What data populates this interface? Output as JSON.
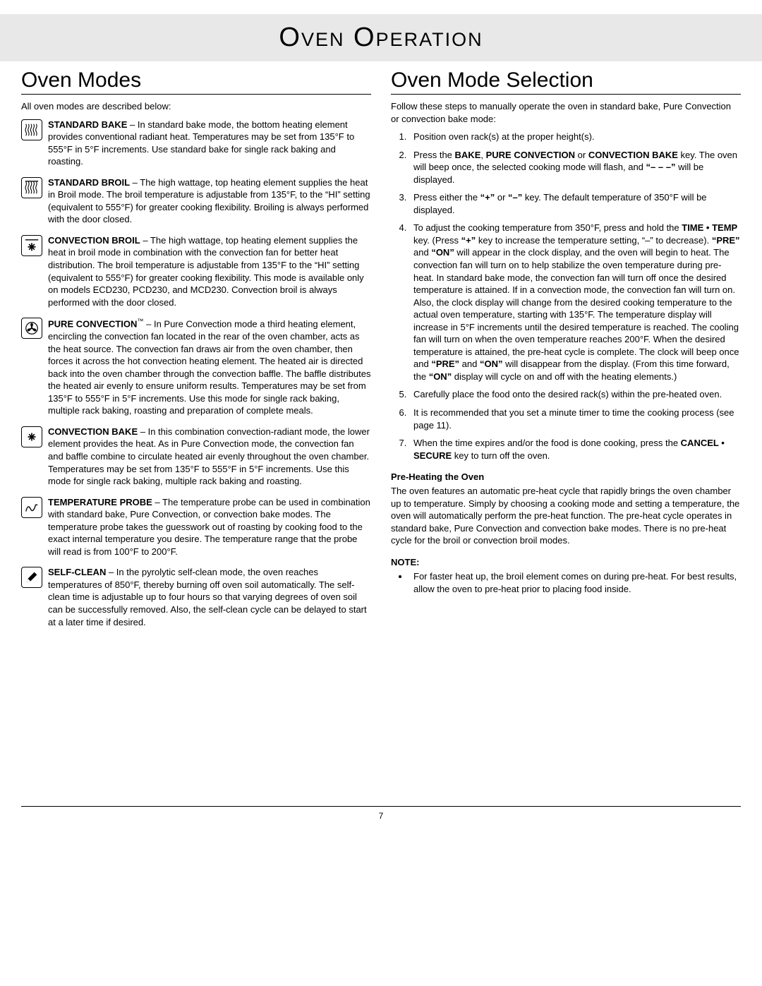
{
  "header": {
    "title": "Oven Operation"
  },
  "left": {
    "heading": "Oven Modes",
    "intro": "All oven modes are described below:",
    "modes": [
      {
        "icon": "waves-bottom",
        "title": "STANDARD BAKE",
        "body": " – In standard bake mode, the bottom heating element provides conventional radiant heat. Temperatures may be set from 135°F to 555°F in 5°F increments. Use standard bake for single rack baking and roasting."
      },
      {
        "icon": "waves-top",
        "title": "STANDARD BROIL",
        "body": " – The high wattage, top heating element supplies the heat in Broil mode. The broil temperature is adjustable from 135°F, to the “HI” setting (equivalent to 555°F) for greater cooking flexibility. Broiling is always performed with the door closed."
      },
      {
        "icon": "asterisk-bar",
        "title": "CONVECTION BROIL",
        "body": " – The high wattage, top heating element supplies the heat in broil mode in combination with the convection fan for better heat distribution. The broil temperature is adjustable from 135°F to the “HI” setting (equivalent to 555°F) for greater cooking flexibility. This mode is available only on models ECD230, PCD230, and MCD230. Convection broil is always performed with the door closed."
      },
      {
        "icon": "fan",
        "title": "PURE CONVECTION",
        "tm": "™",
        "body": " – In Pure Convection mode a third heating element, encircling the convection fan located in the rear of the oven chamber, acts as the heat source. The convection fan draws air from the oven chamber, then forces it across the hot convection heating element. The heated air is directed back into the oven chamber through the convection baffle. The baffle distributes the heated air evenly to ensure uniform results. Temperatures may be set from 135°F to 555°F in 5°F increments. Use this mode for single rack baking, multiple rack baking, roasting and preparation of complete meals."
      },
      {
        "icon": "asterisk",
        "title": "CONVECTION BAKE",
        "body": " – In this combination convection-radiant mode, the lower element provides the heat. As in Pure Convection mode, the convection fan and baffle combine to circulate heated air evenly throughout the oven chamber. Temperatures may be set from 135°F to 555°F in 5°F increments. Use this mode for single rack baking, multiple rack baking and roasting."
      },
      {
        "icon": "probe",
        "title": "TEMPERATURE PROBE",
        "body": " – The temperature probe can be used in combination with standard bake, Pure Convection, or convection bake modes. The temperature probe takes the guesswork out of roasting by cooking food to the exact internal temperature you desire. The temperature range that the probe will read is from 100°F to 200°F."
      },
      {
        "icon": "pencil",
        "title": "SELF-CLEAN",
        "body": " – In the pyrolytic self-clean mode, the oven reaches temperatures of 850°F, thereby burning off oven soil automatically. The self-clean time is adjustable up to four hours so that varying degrees of oven soil can be successfully removed. Also, the self-clean cycle can be delayed to start at a later time if desired."
      }
    ]
  },
  "right": {
    "heading": "Oven Mode Selection",
    "intro": "Follow these steps to manually operate the oven in standard bake, Pure Convection or convection bake mode:",
    "steps": [
      "Position oven rack(s) at the proper height(s).",
      "Press the <b>BAKE</b>, <b>PURE CONVECTION</b> or <b>CONVECTION BAKE</b> key. The oven will beep once, the selected cooking mode will flash, and <b>“– – –”</b> will be displayed.",
      "Press either the <b>“+”</b> or <b>“–”</b> key. The default temperature of 350°F will be displayed.",
      "To adjust the cooking temperature from 350°F, press and hold the <b>TIME • TEMP</b> key. (Press <b>“+”</b> key to increase the temperature setting, “–” to decrease). <b>“PRE”</b> and <b>“ON”</b> will appear in the clock display, and the oven will begin to heat. The convection fan will turn on to help stabilize the oven temperature during pre-heat. In standard bake mode, the convection fan will turn off once the desired temperature is attained. If in a convection mode, the convection fan will turn on. Also, the clock display will change from the desired cooking temperature to the actual oven temperature, starting with 135°F. The temperature display will increase in 5°F increments until the desired temperature is reached. The cooling fan will turn on when the oven temperature reaches 200°F. When the desired temperature is attained, the pre-heat cycle is complete. The clock will beep once and <b>“PRE”</b> and <b>“ON”</b> will disappear from the display. (From this time forward, the <b>“ON”</b> display will cycle on and off with the heating elements.)",
      "Carefully place the food onto the desired rack(s) within the pre-heated oven.",
      "It is recommended that you set a minute timer to time the cooking process (see page 11).",
      "When the time expires and/or the food is done cooking, press the <b>CANCEL • SECURE</b> key to turn off the oven."
    ],
    "preheat_heading": "Pre-Heating the Oven",
    "preheat_body": "The oven features an automatic pre-heat cycle that rapidly brings the oven chamber up to temperature. Simply by choosing a cooking mode and setting a temperature, the oven will automatically perform the pre-heat function. The pre-heat cycle operates in standard bake, Pure Convection and convection bake modes. There is no pre-heat cycle for the broil or convection broil modes.",
    "note_label": "NOTE:",
    "notes": [
      "For faster heat up, the broil element comes on during pre-heat. For best results, allow the oven to pre-heat prior to placing food inside."
    ]
  },
  "footer": {
    "page_number": "7"
  }
}
